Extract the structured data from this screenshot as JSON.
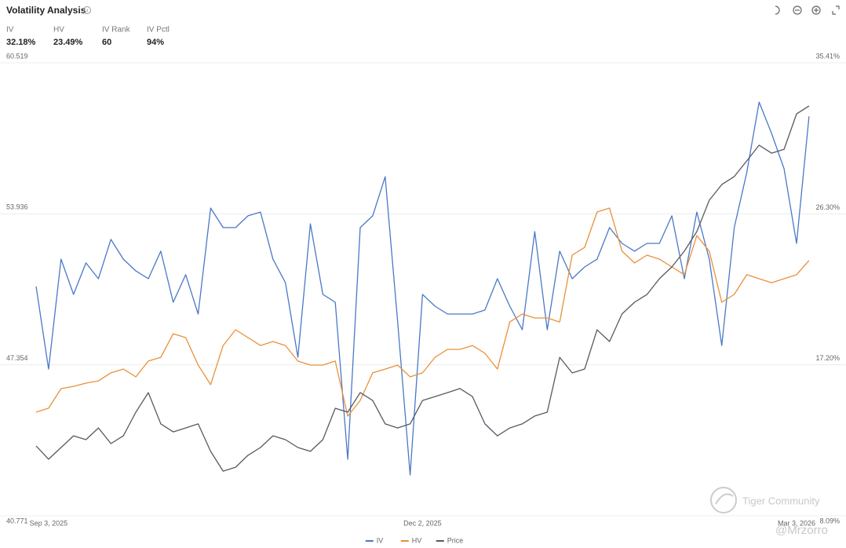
{
  "header": {
    "title": "Volatility Analysis"
  },
  "stats": [
    {
      "label": "IV",
      "value": "32.18%"
    },
    {
      "label": "HV",
      "value": "23.49%"
    },
    {
      "label": "IV Rank",
      "value": "60"
    },
    {
      "label": "IV Pctl",
      "value": "94%"
    }
  ],
  "chart_data": {
    "type": "line",
    "categories": [
      null,
      "Sep 3, 2025",
      null,
      null,
      null,
      null,
      null,
      null,
      null,
      null,
      null,
      null,
      null,
      null,
      null,
      null,
      null,
      null,
      null,
      null,
      null,
      null,
      null,
      null,
      null,
      null,
      null,
      null,
      null,
      null,
      null,
      "Dec 2, 2025",
      null,
      null,
      null,
      null,
      null,
      null,
      null,
      null,
      null,
      null,
      null,
      null,
      null,
      null,
      null,
      null,
      null,
      null,
      null,
      null,
      null,
      null,
      null,
      null,
      null,
      null,
      null,
      null,
      null,
      "Mar 3, 2026",
      null
    ],
    "series": [
      {
        "name": "IV",
        "color": "#4a78c8",
        "axis": "y2",
        "values": [
          21.92,
          16.94,
          23.57,
          21.44,
          23.34,
          22.39,
          24.76,
          23.57,
          22.86,
          22.39,
          24.05,
          20.97,
          22.63,
          20.26,
          26.65,
          25.47,
          25.47,
          26.18,
          26.41,
          23.57,
          22.15,
          17.65,
          25.7,
          21.44,
          20.97,
          11.5,
          25.47,
          26.18,
          28.54,
          19.78,
          10.55,
          21.44,
          20.73,
          20.26,
          20.26,
          20.26,
          20.5,
          22.39,
          20.73,
          19.31,
          25.23,
          19.31,
          24.05,
          22.39,
          23.1,
          23.57,
          25.47,
          24.52,
          24.05,
          24.52,
          24.52,
          26.18,
          22.39,
          26.41,
          23.57,
          18.36,
          25.47,
          28.78,
          33.04,
          31.15,
          29.02,
          24.52,
          32.18
        ]
      },
      {
        "name": "HV",
        "color": "#e8913a",
        "axis": "y2",
        "values": [
          14.34,
          14.58,
          15.76,
          15.9,
          16.09,
          16.23,
          16.71,
          16.94,
          16.47,
          17.42,
          17.65,
          19.07,
          18.84,
          17.18,
          16.0,
          18.36,
          19.31,
          18.84,
          18.36,
          18.6,
          18.36,
          17.42,
          17.18,
          17.18,
          17.42,
          14.1,
          15.05,
          16.71,
          16.94,
          17.18,
          16.47,
          16.71,
          17.65,
          18.13,
          18.13,
          18.36,
          17.89,
          16.94,
          19.78,
          20.26,
          20.02,
          20.02,
          19.78,
          23.81,
          24.28,
          26.41,
          26.65,
          24.05,
          23.34,
          23.81,
          23.57,
          23.1,
          22.63,
          24.99,
          24.05,
          20.97,
          21.44,
          22.63,
          22.39,
          22.15,
          22.39,
          22.63,
          23.49
        ]
      },
      {
        "name": "Price",
        "color": "#555a63",
        "values": [
          43.82,
          43.24,
          43.75,
          44.26,
          44.09,
          44.6,
          43.92,
          44.26,
          45.29,
          46.14,
          44.78,
          44.43,
          44.6,
          44.78,
          43.58,
          42.72,
          42.89,
          43.41,
          43.75,
          44.26,
          44.09,
          43.75,
          43.58,
          44.09,
          45.46,
          45.29,
          46.14,
          45.8,
          44.78,
          44.6,
          44.78,
          45.8,
          45.97,
          46.14,
          46.32,
          45.97,
          44.78,
          44.26,
          44.6,
          44.78,
          45.12,
          45.29,
          47.68,
          47.0,
          47.17,
          48.88,
          48.37,
          49.57,
          50.08,
          50.42,
          51.11,
          51.62,
          52.31,
          53.16,
          54.53,
          55.21,
          55.56,
          56.24,
          56.93,
          56.58,
          56.75,
          58.29,
          58.64
        ]
      }
    ],
    "ylim": [
      40.771,
      60.519
    ],
    "yticks": [
      40.771,
      47.354,
      53.936,
      60.519
    ],
    "y2lim": [
      8.09,
      35.41
    ],
    "y2ticks": [
      {
        "value": 8.09,
        "label": "8.09%"
      },
      {
        "value": 17.2,
        "label": "17.20%"
      },
      {
        "value": 26.3,
        "label": "26.30%"
      },
      {
        "value": 35.41,
        "label": "35.41%"
      }
    ],
    "grid": true,
    "legend": "bottom"
  },
  "watermark": {
    "brand": "Tiger Community",
    "handle": "@Mrzorro"
  }
}
